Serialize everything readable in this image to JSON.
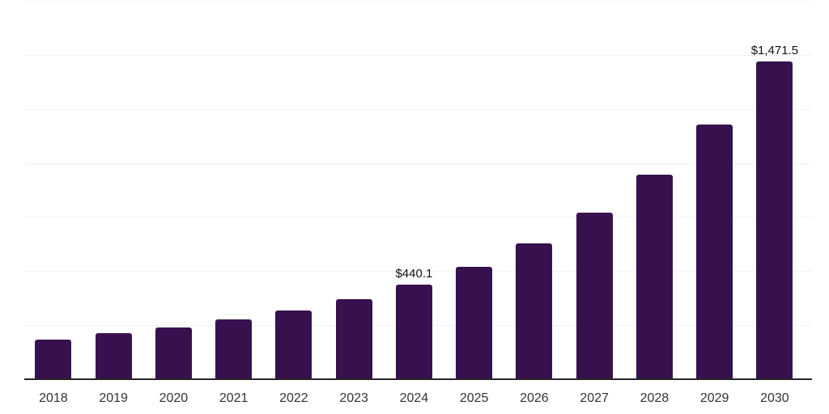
{
  "chart_data": {
    "type": "bar",
    "title": "",
    "xlabel": "",
    "ylabel": "",
    "categories": [
      "2018",
      "2019",
      "2020",
      "2021",
      "2022",
      "2023",
      "2024",
      "2025",
      "2026",
      "2027",
      "2028",
      "2029",
      "2030"
    ],
    "values": [
      186.4,
      215.2,
      244.8,
      279.5,
      323.2,
      375.2,
      440.1,
      522.9,
      633.5,
      775.1,
      950.3,
      1180.1,
      1471.5
    ],
    "data_labels": {
      "2024": "$440.1",
      "2030": "$1,471.5"
    },
    "unit_prefix": "$",
    "ylim": [
      0,
      1750
    ],
    "gridline_interval": 250,
    "grid": "horizontal",
    "legend": "none",
    "y_axis_tick_labels_visible": false,
    "bar_color": "#37114D",
    "axis_line_color": "#262626",
    "gridline_color": "#f1f1f1",
    "background_color": "#ffffff",
    "data_label_color": "#111111",
    "tick_label_color": "#333333"
  }
}
